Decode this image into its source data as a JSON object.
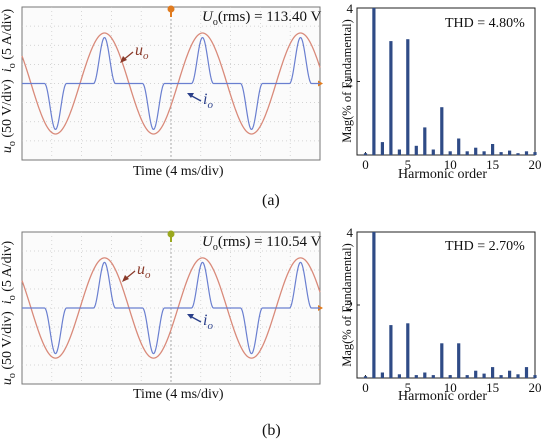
{
  "figure": {
    "panels": [
      {
        "caption": "(a)",
        "scope": {
          "annotation_prefix": "U",
          "annotation_sub": "o",
          "annotation_rest": "(rms) = 113.40 V",
          "ylabel_u": "u",
          "ylabel_u_sub": "o",
          "ylabel_u_rest": " (50 V/div)",
          "ylabel_i": "i",
          "ylabel_i_sub": "o",
          "ylabel_i_rest": " (5 A/div)",
          "xlabel": "Time (4 ms/div)",
          "uo_label": "u",
          "uo_label_sub": "o",
          "io_label": "i",
          "io_label_sub": "o",
          "trigger_color": "#e07b1f"
        },
        "harmonics": {
          "thd": "THD = 4.80%",
          "xlabel": "Harmonic order",
          "ylabel": "Mag(% of Fundamental)",
          "bar_color": "#2f4b86"
        }
      },
      {
        "caption": "(b)",
        "scope": {
          "annotation_prefix": "U",
          "annotation_sub": "o",
          "annotation_rest": "(rms) = 110.54 V",
          "ylabel_u": "u",
          "ylabel_u_sub": "o",
          "ylabel_u_rest": " (50 V/div)",
          "ylabel_i": "i",
          "ylabel_i_sub": "o",
          "ylabel_i_rest": " (5 A/div)",
          "xlabel": "Time (4 ms/div)",
          "uo_label": "u",
          "uo_label_sub": "o",
          "io_label": "i",
          "io_label_sub": "o",
          "trigger_color": "#9aa81e"
        },
        "harmonics": {
          "thd": "THD = 2.70%",
          "xlabel": "Harmonic order",
          "ylabel": "Mag(% of Fundamental)",
          "bar_color": "#2f4b86"
        }
      }
    ]
  },
  "chart_data": [
    {
      "type": "bar",
      "title": "THD = 4.80%",
      "xlabel": "Harmonic order",
      "ylabel": "Mag(% of Fundamental)",
      "xlim": [
        -1,
        20
      ],
      "ylim": [
        0,
        4
      ],
      "xticks": [
        0,
        5,
        10,
        15,
        20
      ],
      "yticks": [
        2,
        4
      ],
      "x": [
        0,
        1,
        2,
        3,
        4,
        5,
        6,
        7,
        8,
        9,
        10,
        11,
        12,
        13,
        14,
        15,
        16,
        17,
        18,
        19,
        20
      ],
      "values": [
        0.05,
        4.0,
        0.35,
        3.1,
        0.15,
        3.15,
        0.25,
        0.75,
        0.15,
        1.3,
        0.1,
        0.45,
        0.1,
        0.2,
        0.1,
        0.3,
        0.08,
        0.12,
        0.05,
        0.1,
        0.08
      ]
    },
    {
      "type": "bar",
      "title": "THD = 2.70%",
      "xlabel": "Harmonic order",
      "ylabel": "Mag(% of Fundamental)",
      "xlim": [
        -1,
        20
      ],
      "ylim": [
        0,
        4
      ],
      "xticks": [
        0,
        5,
        10,
        15,
        20
      ],
      "yticks": [
        2,
        4
      ],
      "x": [
        0,
        1,
        2,
        3,
        4,
        5,
        6,
        7,
        8,
        9,
        10,
        11,
        12,
        13,
        14,
        15,
        16,
        17,
        18,
        19,
        20
      ],
      "values": [
        0.05,
        4.0,
        0.15,
        1.45,
        0.1,
        1.5,
        0.08,
        0.15,
        0.08,
        0.95,
        0.08,
        0.95,
        0.08,
        0.2,
        0.12,
        0.3,
        0.08,
        0.2,
        0.1,
        0.3,
        0.08
      ]
    }
  ]
}
